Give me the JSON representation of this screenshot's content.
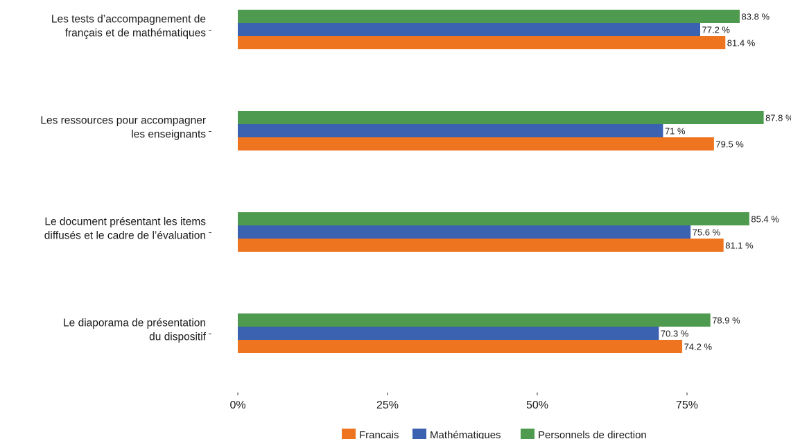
{
  "chart_data": {
    "type": "bar",
    "orientation": "horizontal",
    "categories": [
      [
        "Les tests d’accompagnement de",
        "français et de mathématiques"
      ],
      [
        "Les ressources pour accompagner",
        "les enseignants"
      ],
      [
        "Le document présentant les items",
        "diffusés et le cadre de l’évaluation"
      ],
      [
        "Le diaporama de présentation",
        "du dispositif"
      ]
    ],
    "series": [
      {
        "name": "Personnels de direction",
        "color": "#4e9a4e",
        "values": [
          83.8,
          87.8,
          85.4,
          78.9
        ],
        "labels": [
          "83.8 %",
          "87.8 %",
          "85.4 %",
          "78.9 %"
        ]
      },
      {
        "name": "Mathématiques",
        "color": "#3a62b0",
        "values": [
          77.2,
          71,
          75.6,
          70.3
        ],
        "labels": [
          "77.2 %",
          "71 %",
          "75.6 %",
          "70.3 %"
        ]
      },
      {
        "name": "Francais",
        "color": "#ee741f",
        "values": [
          81.4,
          79.5,
          81.1,
          74.2
        ],
        "labels": [
          "81.4 %",
          "79.5 %",
          "81.1 %",
          "74.2 %"
        ]
      }
    ],
    "xticks": [
      0,
      25,
      50,
      75
    ],
    "xtick_labels": [
      "0%",
      "25%",
      "50%",
      "75%"
    ],
    "xlim": [
      0,
      100
    ],
    "grid": false,
    "legend_position": "bottom",
    "legend_order": [
      "Francais",
      "Mathématiques",
      "Personnels de direction"
    ],
    "title": "",
    "xlabel": "",
    "ylabel": ""
  }
}
